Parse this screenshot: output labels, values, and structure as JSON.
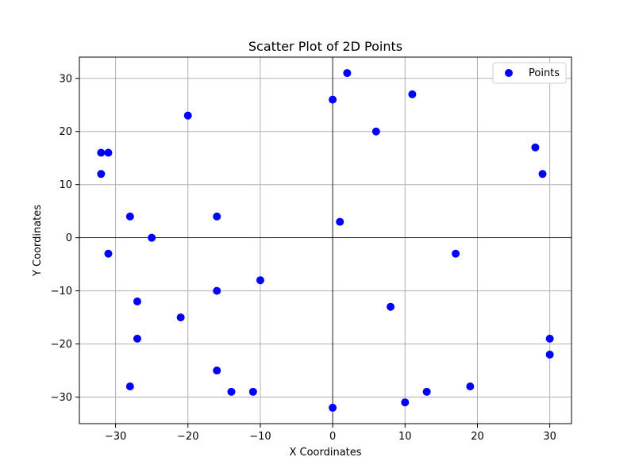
{
  "chart_data": {
    "type": "scatter",
    "title": "Scatter Plot of 2D Points",
    "xlabel": "X Coordinates",
    "ylabel": "Y Coordinates",
    "xlim": [
      -35,
      33
    ],
    "ylim": [
      -35,
      34
    ],
    "xticks": [
      -30,
      -20,
      -10,
      0,
      10,
      20,
      30
    ],
    "yticks": [
      -30,
      -20,
      -10,
      0,
      10,
      20,
      30
    ],
    "grid": true,
    "zero_lines": true,
    "legend_position": "top-right",
    "series": [
      {
        "name": "Points",
        "color": "#0000ff",
        "points": [
          [
            2,
            31
          ],
          [
            0,
            26
          ],
          [
            11,
            27
          ],
          [
            -20,
            23
          ],
          [
            6,
            20
          ],
          [
            -32,
            16
          ],
          [
            -31,
            16
          ],
          [
            28,
            17
          ],
          [
            -32,
            12
          ],
          [
            29,
            12
          ],
          [
            -28,
            4
          ],
          [
            -16,
            4
          ],
          [
            1,
            3
          ],
          [
            -25,
            0
          ],
          [
            -31,
            -3
          ],
          [
            17,
            -3
          ],
          [
            -10,
            -8
          ],
          [
            -16,
            -10
          ],
          [
            -27,
            -12
          ],
          [
            8,
            -13
          ],
          [
            -21,
            -15
          ],
          [
            -27,
            -19
          ],
          [
            30,
            -19
          ],
          [
            30,
            -22
          ],
          [
            -16,
            -25
          ],
          [
            -28,
            -28
          ],
          [
            19,
            -28
          ],
          [
            -14,
            -29
          ],
          [
            -11,
            -29
          ],
          [
            13,
            -29
          ],
          [
            10,
            -31
          ],
          [
            0,
            -32
          ]
        ]
      }
    ]
  }
}
